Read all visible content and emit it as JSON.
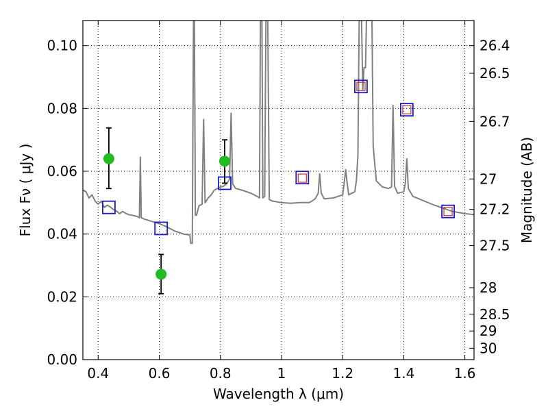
{
  "chart_data": {
    "type": "line",
    "xlabel": "Wavelength  λ (μm)",
    "ylabel": "Flux  F_ν  ( μJy )",
    "ylabel_right": "Magnitude (AB)",
    "xlim": [
      0.35,
      1.63
    ],
    "ylim": [
      0.0,
      0.108
    ],
    "grid": true,
    "x_ticks": [
      0.4,
      0.6,
      0.8,
      1.0,
      1.2,
      1.4,
      1.6
    ],
    "x_tick_labels": [
      "0.4",
      "0.6",
      "0.8",
      "1",
      "1.2",
      "1.4",
      "1.6"
    ],
    "y_ticks": [
      0.0,
      0.02,
      0.04,
      0.06,
      0.08,
      0.1
    ],
    "y_tick_labels": [
      "0.00",
      "0.02",
      "0.04",
      "0.06",
      "0.08",
      "0.10"
    ],
    "mag_ticks": [
      "26.4",
      "26.5",
      "26.7",
      "27",
      "27.2",
      "27.5",
      "28",
      "28.5",
      "29",
      "30"
    ],
    "colors": {
      "model": "#808080",
      "photometry": "#22bb22",
      "errorbar": "#000000",
      "model_box": "#1a1acc",
      "inner_box": "#d03030"
    },
    "series": [
      {
        "kind": "model-spectrum",
        "points": [
          [
            0.35,
            0.054
          ],
          [
            0.36,
            0.0535
          ],
          [
            0.37,
            0.0515
          ],
          [
            0.38,
            0.0525
          ],
          [
            0.39,
            0.0505
          ],
          [
            0.4,
            0.0495
          ],
          [
            0.41,
            0.0505
          ],
          [
            0.42,
            0.0485
          ],
          [
            0.43,
            0.0492
          ],
          [
            0.44,
            0.0486
          ],
          [
            0.45,
            0.0478
          ],
          [
            0.46,
            0.0473
          ],
          [
            0.47,
            0.0465
          ],
          [
            0.48,
            0.0472
          ],
          [
            0.49,
            0.0466
          ],
          [
            0.5,
            0.0462
          ],
          [
            0.51,
            0.046
          ],
          [
            0.52,
            0.0458
          ],
          [
            0.53,
            0.0455
          ],
          [
            0.535,
            0.0452
          ],
          [
            0.538,
            0.0645
          ],
          [
            0.541,
            0.0452
          ],
          [
            0.55,
            0.0448
          ],
          [
            0.57,
            0.0442
          ],
          [
            0.6,
            0.0433
          ],
          [
            0.62,
            0.0425
          ],
          [
            0.65,
            0.041
          ],
          [
            0.68,
            0.04
          ],
          [
            0.7,
            0.0397
          ],
          [
            0.703,
            0.037
          ],
          [
            0.708,
            0.037
          ],
          [
            0.712,
            0.108
          ],
          [
            0.715,
            0.108
          ],
          [
            0.718,
            0.046
          ],
          [
            0.722,
            0.046
          ],
          [
            0.73,
            0.049
          ],
          [
            0.74,
            0.0495
          ],
          [
            0.745,
            0.0765
          ],
          [
            0.75,
            0.05
          ],
          [
            0.76,
            0.0515
          ],
          [
            0.77,
            0.0525
          ],
          [
            0.78,
            0.054
          ],
          [
            0.79,
            0.0545
          ],
          [
            0.8,
            0.055
          ],
          [
            0.81,
            0.0552
          ],
          [
            0.82,
            0.056
          ],
          [
            0.83,
            0.0575
          ],
          [
            0.835,
            0.0785
          ],
          [
            0.84,
            0.056
          ],
          [
            0.85,
            0.0545
          ],
          [
            0.87,
            0.054
          ],
          [
            0.9,
            0.053
          ],
          [
            0.92,
            0.052
          ],
          [
            0.928,
            0.0515
          ],
          [
            0.931,
            0.108
          ],
          [
            0.936,
            0.108
          ],
          [
            0.939,
            0.0515
          ],
          [
            0.945,
            0.052
          ],
          [
            0.949,
            0.108
          ],
          [
            0.955,
            0.108
          ],
          [
            0.96,
            0.051
          ],
          [
            0.97,
            0.0505
          ],
          [
            1.0,
            0.05
          ],
          [
            1.03,
            0.0498
          ],
          [
            1.06,
            0.05
          ],
          [
            1.09,
            0.05
          ],
          [
            1.1,
            0.0505
          ],
          [
            1.11,
            0.0512
          ],
          [
            1.12,
            0.053
          ],
          [
            1.125,
            0.0592
          ],
          [
            1.13,
            0.053
          ],
          [
            1.14,
            0.0512
          ],
          [
            1.17,
            0.0515
          ],
          [
            1.2,
            0.0525
          ],
          [
            1.205,
            0.056
          ],
          [
            1.21,
            0.0605
          ],
          [
            1.215,
            0.056
          ],
          [
            1.22,
            0.0525
          ],
          [
            1.24,
            0.0535
          ],
          [
            1.245,
            0.057
          ],
          [
            1.25,
            0.065
          ],
          [
            1.254,
            0.108
          ],
          [
            1.262,
            0.108
          ],
          [
            1.266,
            0.086
          ],
          [
            1.27,
            0.093
          ],
          [
            1.275,
            0.093
          ],
          [
            1.278,
            0.108
          ],
          [
            1.296,
            0.108
          ],
          [
            1.3,
            0.068
          ],
          [
            1.31,
            0.057
          ],
          [
            1.33,
            0.055
          ],
          [
            1.35,
            0.0545
          ],
          [
            1.36,
            0.055
          ],
          [
            1.365,
            0.081
          ],
          [
            1.37,
            0.0552
          ],
          [
            1.38,
            0.053
          ],
          [
            1.4,
            0.0535
          ],
          [
            1.405,
            0.056
          ],
          [
            1.41,
            0.064
          ],
          [
            1.415,
            0.0545
          ],
          [
            1.43,
            0.052
          ],
          [
            1.46,
            0.0508
          ],
          [
            1.5,
            0.0492
          ],
          [
            1.53,
            0.0482
          ],
          [
            1.56,
            0.0472
          ],
          [
            1.6,
            0.0465
          ],
          [
            1.63,
            0.0462
          ]
        ]
      },
      {
        "kind": "observed-photometry",
        "points": [
          {
            "x": 0.435,
            "y": 0.064,
            "yerr_low": 0.0545,
            "yerr_high": 0.0738
          },
          {
            "x": 0.606,
            "y": 0.0272,
            "yerr_low": 0.021,
            "yerr_high": 0.0335
          },
          {
            "x": 0.814,
            "y": 0.0632,
            "yerr_low": 0.0562,
            "yerr_high": 0.07
          }
        ]
      },
      {
        "kind": "model-photometry-boxes",
        "points": [
          [
            0.435,
            0.0485
          ],
          [
            0.606,
            0.0418
          ],
          [
            0.814,
            0.0562
          ],
          [
            1.068,
            0.058
          ],
          [
            1.26,
            0.087
          ],
          [
            1.41,
            0.0796
          ],
          [
            1.545,
            0.0472
          ]
        ]
      },
      {
        "kind": "inner-boxes",
        "points": [
          [
            1.068,
            0.0578
          ],
          [
            1.26,
            0.087
          ],
          [
            1.41,
            0.0796
          ],
          [
            1.545,
            0.0472
          ]
        ]
      }
    ]
  }
}
